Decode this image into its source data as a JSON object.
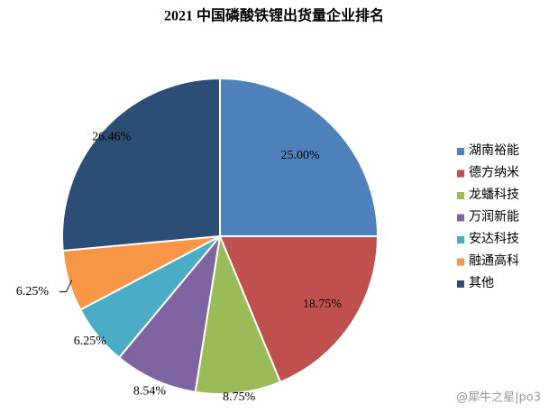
{
  "chart_data": {
    "type": "pie",
    "title": "2021 中国磷酸铁锂出货量企业排名",
    "categories": [
      "湖南裕能",
      "德方纳米",
      "龙蟠科技",
      "万润新能",
      "安达科技",
      "融通高科",
      "其他"
    ],
    "values": [
      25.0,
      18.75,
      8.75,
      8.54,
      6.25,
      6.25,
      26.46
    ],
    "value_labels": [
      "25.00%",
      "18.75%",
      "8.75%",
      "8.54%",
      "6.25%",
      "6.25%",
      "26.46%"
    ],
    "colors": [
      "#4f81bd",
      "#c0504d",
      "#9bbb59",
      "#8064a2",
      "#4bacc6",
      "#f79646",
      "#2c4d75"
    ],
    "legend": "right"
  },
  "watermark": "@犀牛之星|po3"
}
